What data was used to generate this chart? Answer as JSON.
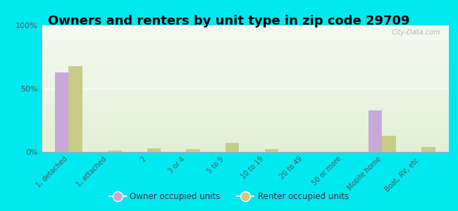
{
  "title": "Owners and renters by unit type in zip code 29709",
  "categories": [
    "1, detached",
    "1, attached",
    "2",
    "3 or 4",
    "5 to 9",
    "10 to 19",
    "20 to 49",
    "50 or more",
    "Mobile home",
    "Boat, RV, etc."
  ],
  "owner_values": [
    63,
    0,
    0,
    0,
    0,
    0,
    0,
    0,
    33,
    0
  ],
  "renter_values": [
    68,
    1,
    3,
    2,
    7,
    2,
    0,
    0,
    13,
    4
  ],
  "owner_color": "#c8a8d8",
  "renter_color": "#c8cc88",
  "background_color": "#00e8f0",
  "yticks": [
    0,
    50,
    100
  ],
  "ylabels": [
    "0%",
    "50%",
    "100%"
  ],
  "bar_width": 0.35,
  "title_fontsize": 13,
  "legend_labels": [
    "Owner occupied units",
    "Renter occupied units"
  ],
  "plot_bg_colors": [
    "#f2f7ee",
    "#e8f2e0"
  ],
  "grid_color": "#d8e8c8",
  "watermark": "City-Data.com"
}
